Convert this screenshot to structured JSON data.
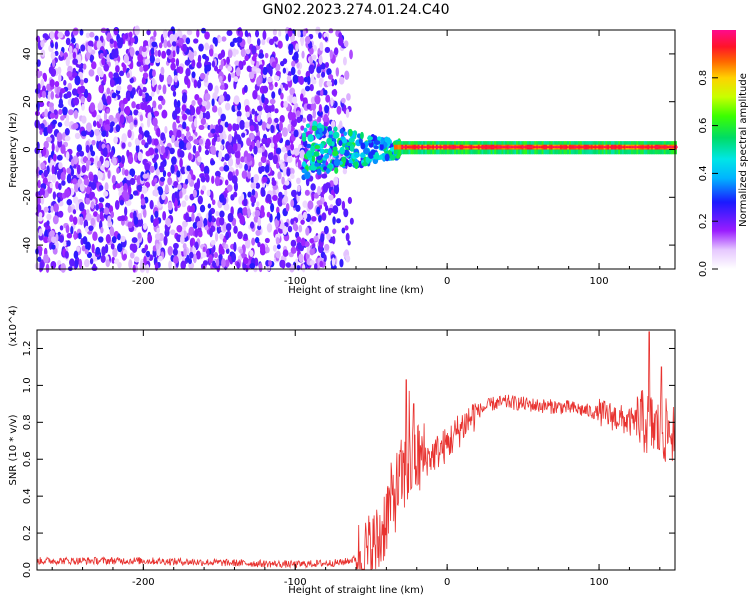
{
  "title": "GN02.2023.274.01.24.C40",
  "chart_data": [
    {
      "type": "heatmap",
      "title": "GN02.2023.274.01.24.C40",
      "xlabel": "Height of straight line (km)",
      "ylabel": "Frequency (Hz)",
      "xlim": [
        -270,
        150
      ],
      "ylim": [
        -50,
        50
      ],
      "xticks": [
        -200,
        -100,
        0,
        100
      ],
      "yticks": [
        -40,
        -20,
        0,
        20,
        40
      ],
      "colorbar": {
        "label": "Normalized spectral amplitude",
        "range": [
          0,
          1
        ],
        "ticks": [
          "0.0",
          "0.2",
          "0.4",
          "0.6",
          "0.8"
        ],
        "colormap": "rainbow (white-purple-blue-cyan-green-yellow-red-magenta)"
      },
      "regions": [
        {
          "x_range": [
            -270,
            -65
          ],
          "description": "broadband noise, amplitude 0.1-0.3"
        },
        {
          "x_range": [
            -95,
            -30
          ],
          "frequency_band": [
            -12,
            12
          ],
          "description": "emerging signal, amplitude 0.3-0.6"
        },
        {
          "x_range": [
            -30,
            150
          ],
          "center_frequency": 1,
          "description": "narrow line near 1 Hz, amplitude 0.8-1.0"
        }
      ]
    },
    {
      "type": "line",
      "xlabel": "Height of straight line (km)",
      "ylabel": "SNR (10 * v/v)",
      "y_multiplier": "(x10^4)",
      "xlim": [
        -270,
        150
      ],
      "ylim": [
        0,
        1.3
      ],
      "xticks": [
        -200,
        -100,
        0,
        100
      ],
      "yticks": [
        "0.0",
        "0.2",
        "0.4",
        "0.6",
        "0.8",
        "1.0",
        "1.2"
      ],
      "color": "#e8322f",
      "series": [
        {
          "x": [
            -270,
            -250,
            -200,
            -150,
            -100,
            -70,
            -55,
            -45,
            -40,
            -35,
            -30,
            -25,
            -20,
            -15,
            -10,
            0,
            10,
            20,
            30,
            40,
            60,
            80,
            100,
            110,
            120,
            130,
            135,
            140,
            145,
            150
          ],
          "y": [
            0.05,
            0.05,
            0.05,
            0.04,
            0.03,
            0.04,
            0.07,
            0.15,
            0.3,
            0.4,
            0.5,
            0.55,
            0.6,
            0.6,
            0.62,
            0.68,
            0.78,
            0.86,
            0.9,
            0.91,
            0.89,
            0.88,
            0.85,
            0.83,
            0.8,
            0.8,
            0.78,
            0.75,
            0.75,
            0.75
          ]
        }
      ],
      "spikes": [
        {
          "x": -27,
          "y": 1.03
        },
        {
          "x": -25,
          "y": 0.97
        },
        {
          "x": -22,
          "y": 0.9
        },
        {
          "x": 133,
          "y": 1.29
        },
        {
          "x": 141,
          "y": 1.1
        }
      ]
    }
  ]
}
